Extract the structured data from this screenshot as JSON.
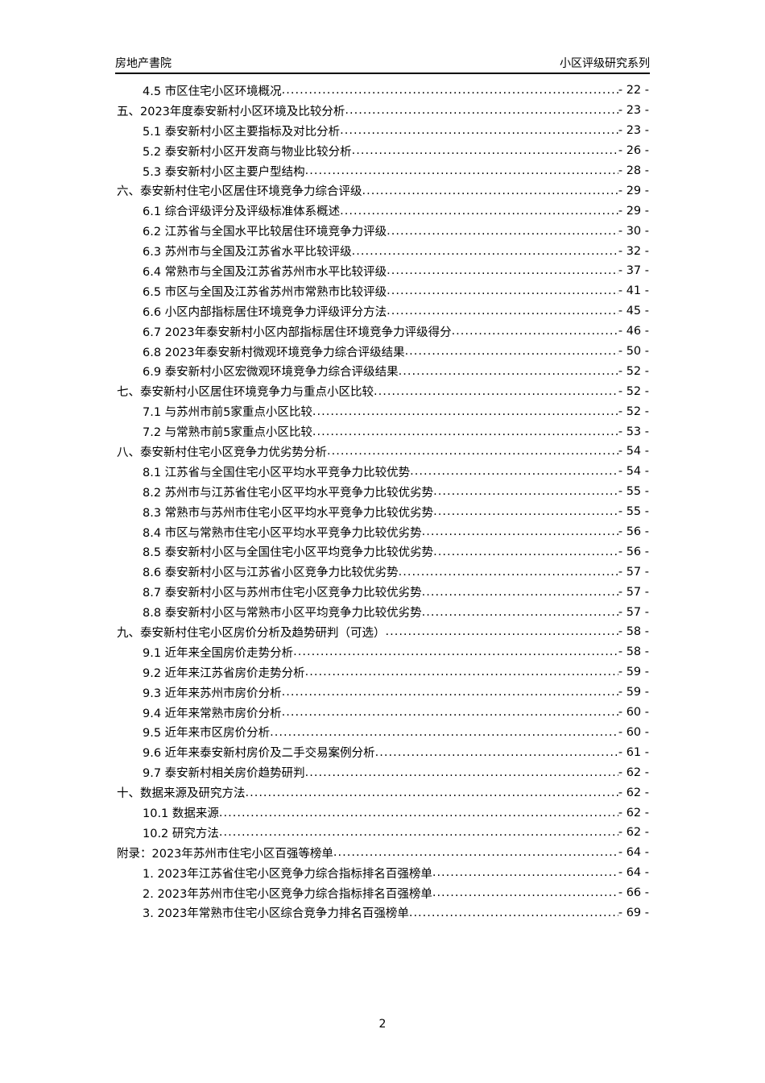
{
  "header": {
    "left": "房地产書院",
    "right": "小区评级研究系列"
  },
  "toc": [
    {
      "level": 2,
      "title": "4.5 市区住宅小区环境概况",
      "page": "- 22 -"
    },
    {
      "level": 1,
      "title": "五、2023年度泰安新村小区环境及比较分析",
      "page": "- 23 -"
    },
    {
      "level": 2,
      "title": "5.1 泰安新村小区主要指标及对比分析",
      "page": "- 23 -"
    },
    {
      "level": 2,
      "title": "5.2 泰安新村小区开发商与物业比较分析",
      "page": "- 26 -"
    },
    {
      "level": 2,
      "title": "5.3 泰安新村小区主要户型结构",
      "page": "- 28 -"
    },
    {
      "level": 1,
      "title": "六、泰安新村住宅小区居住环境竞争力综合评级",
      "page": "- 29 -"
    },
    {
      "level": 2,
      "title": "6.1 综合评级评分及评级标准体系概述",
      "page": "- 29 -"
    },
    {
      "level": 2,
      "title": "6.2 江苏省与全国水平比较居住环境竞争力评级",
      "page": "- 30 -"
    },
    {
      "level": 2,
      "title": "6.3 苏州市与全国及江苏省水平比较评级",
      "page": "- 32 -"
    },
    {
      "level": 2,
      "title": "6.4 常熟市与全国及江苏省苏州市水平比较评级",
      "page": "- 37 -"
    },
    {
      "level": 2,
      "title": "6.5 市区与全国及江苏省苏州市常熟市比较评级",
      "page": "- 41 -"
    },
    {
      "level": 2,
      "title": "6.6 小区内部指标居住环境竞争力评级评分方法",
      "page": "- 45 -"
    },
    {
      "level": 2,
      "title": "6.7 2023年泰安新村小区内部指标居住环境竞争力评级得分",
      "page": "- 46 -"
    },
    {
      "level": 2,
      "title": "6.8 2023年泰安新村微观环境竞争力综合评级结果",
      "page": "- 50 -"
    },
    {
      "level": 2,
      "title": "6.9 泰安新村小区宏微观环境竞争力综合评级结果",
      "page": "- 52 -"
    },
    {
      "level": 1,
      "title": "七、泰安新村小区居住环境竞争力与重点小区比较",
      "page": "- 52 -"
    },
    {
      "level": 2,
      "title": "7.1 与苏州市前5家重点小区比较",
      "page": "- 52 -"
    },
    {
      "level": 2,
      "title": "7.2 与常熟市前5家重点小区比较",
      "page": "- 53 -"
    },
    {
      "level": 1,
      "title": "八、泰安新村住宅小区竞争力优劣势分析",
      "page": "- 54 -"
    },
    {
      "level": 2,
      "title": "8.1 江苏省与全国住宅小区平均水平竞争力比较优势",
      "page": "- 54 -"
    },
    {
      "level": 2,
      "title": "8.2 苏州市与江苏省住宅小区平均水平竞争力比较优劣势",
      "page": "- 55 -"
    },
    {
      "level": 2,
      "title": "8.3 常熟市与苏州市住宅小区平均水平竞争力比较优劣势",
      "page": "- 55 -"
    },
    {
      "level": 2,
      "title": "8.4 市区与常熟市住宅小区平均水平竞争力比较优劣势",
      "page": "- 56 -"
    },
    {
      "level": 2,
      "title": "8.5 泰安新村小区与全国住宅小区平均竞争力比较优劣势",
      "page": "- 56 -"
    },
    {
      "level": 2,
      "title": "8.6 泰安新村小区与江苏省小区竞争力比较优劣势",
      "page": "- 57 -"
    },
    {
      "level": 2,
      "title": "8.7 泰安新村小区与苏州市住宅小区竞争力比较优劣势",
      "page": "- 57 -"
    },
    {
      "level": 2,
      "title": "8.8 泰安新村小区与常熟市小区平均竞争力比较优劣势",
      "page": "- 57 -"
    },
    {
      "level": 1,
      "title": "九、泰安新村住宅小区房价分析及趋势研判（可选）",
      "page": "- 58 -"
    },
    {
      "level": 2,
      "title": "9.1 近年来全国房价走势分析",
      "page": "- 58 -"
    },
    {
      "level": 2,
      "title": "9.2 近年来江苏省房价走势分析",
      "page": "- 59 -"
    },
    {
      "level": 2,
      "title": "9.3 近年来苏州市房价分析",
      "page": "- 59 -"
    },
    {
      "level": 2,
      "title": "9.4 近年来常熟市房价分析",
      "page": "- 60 -"
    },
    {
      "level": 2,
      "title": "9.5 近年来市区房价分析",
      "page": "- 60 -"
    },
    {
      "level": 2,
      "title": "9.6 近年来泰安新村房价及二手交易案例分析",
      "page": "- 61 -"
    },
    {
      "level": 2,
      "title": "9.7 泰安新村相关房价趋势研判",
      "page": "- 62 -"
    },
    {
      "level": 1,
      "title": "十、数据来源及研究方法",
      "page": "- 62 -"
    },
    {
      "level": 2,
      "title": "10.1 数据来源",
      "page": "- 62 -"
    },
    {
      "level": 2,
      "title": "10.2 研究方法",
      "page": "- 62 -"
    },
    {
      "level": 1,
      "title": "附录：2023年苏州市住宅小区百强等榜单",
      "page": "- 64 -"
    },
    {
      "level": 2,
      "title": "1. 2023年江苏省住宅小区竞争力综合指标排名百强榜单",
      "page": "- 64 -"
    },
    {
      "level": 2,
      "title": "2. 2023年苏州市住宅小区竞争力综合指标排名百强榜单",
      "page": "- 66 -"
    },
    {
      "level": 2,
      "title": "3. 2023年常熟市住宅小区综合竞争力排名百强榜单",
      "page": "- 69 -"
    }
  ],
  "page_number": "2"
}
